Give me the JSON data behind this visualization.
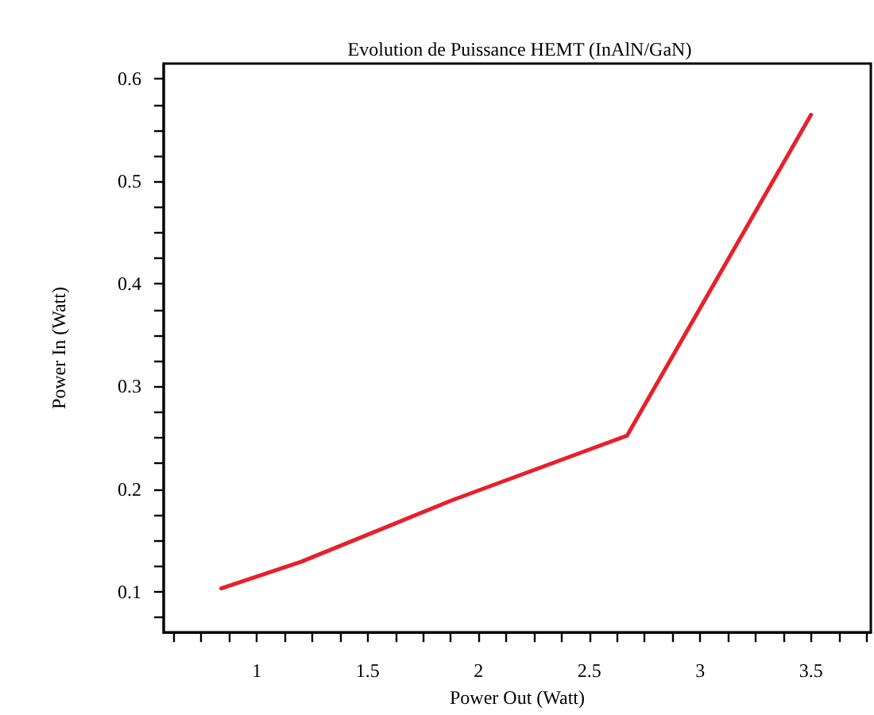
{
  "chart_data": {
    "type": "line",
    "title": "Evolution de Puissance HEMT (InAlN/GaN)",
    "xlabel": "Power Out (Watt)",
    "ylabel": "Power In (Watt)",
    "x": [
      0.84,
      1.2,
      1.88,
      2.67,
      3.5
    ],
    "series": [
      {
        "color": "#e8202a",
        "values": [
          0.103,
          0.129,
          0.189,
          0.252,
          0.565
        ]
      }
    ],
    "xlim": [
      0.58,
      3.77
    ],
    "ylim": [
      0.06,
      0.615
    ],
    "xticks": [
      {
        "value": 0.625,
        "label": null
      },
      {
        "value": 0.75,
        "label": null
      },
      {
        "value": 0.875,
        "label": null
      },
      1,
      {
        "value": 1.125,
        "label": null
      },
      {
        "value": 1.25,
        "label": null
      },
      {
        "value": 1.375,
        "label": null
      },
      1.5,
      {
        "value": 1.625,
        "label": null
      },
      {
        "value": 1.75,
        "label": null
      },
      {
        "value": 1.875,
        "label": null
      },
      2,
      {
        "value": 2.125,
        "label": null
      },
      {
        "value": 2.25,
        "label": null
      },
      {
        "value": 2.375,
        "label": null
      },
      2.5,
      {
        "value": 2.625,
        "label": null
      },
      {
        "value": 2.75,
        "label": null
      },
      {
        "value": 2.875,
        "label": null
      },
      3,
      {
        "value": 3.125,
        "label": null
      },
      {
        "value": 3.25,
        "label": null
      },
      {
        "value": 3.375,
        "label": null
      },
      3.5,
      {
        "value": 3.625,
        "label": null
      },
      {
        "value": 3.75,
        "label": null
      }
    ],
    "yticks": [
      {
        "value": 0.075,
        "label": null
      },
      0.1,
      {
        "value": 0.125,
        "label": null
      },
      {
        "value": 0.15,
        "label": null
      },
      {
        "value": 0.175,
        "label": null
      },
      0.2,
      {
        "value": 0.225,
        "label": null
      },
      {
        "value": 0.25,
        "label": null
      },
      {
        "value": 0.275,
        "label": null
      },
      0.3,
      {
        "value": 0.325,
        "label": null
      },
      {
        "value": 0.35,
        "label": null
      },
      {
        "value": 0.375,
        "label": null
      },
      0.4,
      {
        "value": 0.425,
        "label": null
      },
      {
        "value": 0.45,
        "label": null
      },
      {
        "value": 0.475,
        "label": null
      },
      0.5,
      {
        "value": 0.525,
        "label": null
      },
      {
        "value": 0.55,
        "label": null
      },
      {
        "value": 0.575,
        "label": null
      },
      0.6
    ],
    "marker": "none",
    "line_style": "solid"
  }
}
